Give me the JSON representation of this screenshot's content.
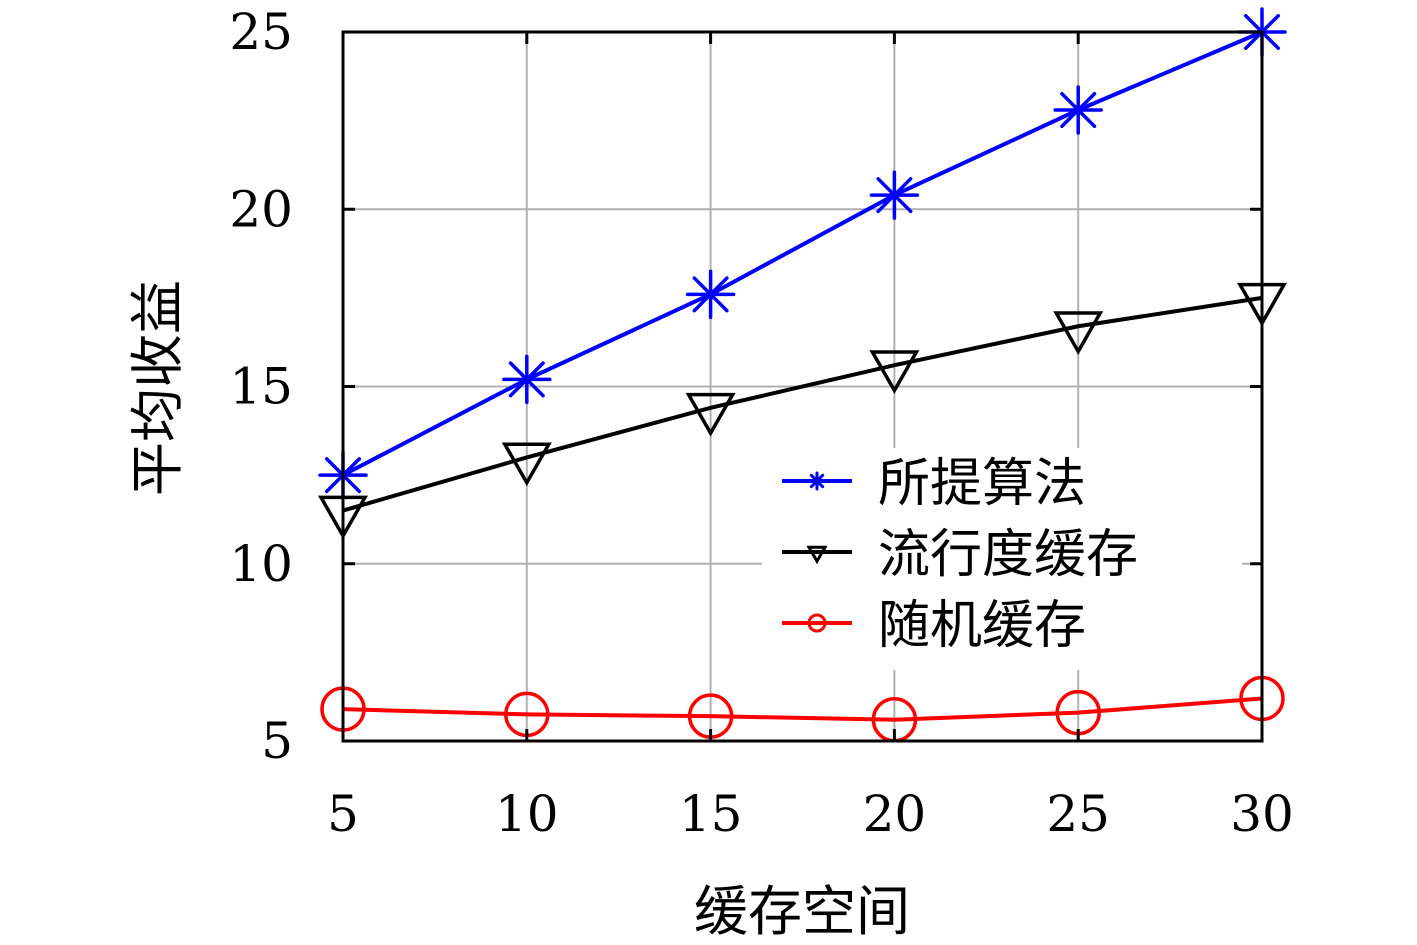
{
  "chart_data": {
    "type": "line",
    "xlabel": "缓存空间",
    "ylabel": "平均收益",
    "x": [
      5,
      10,
      15,
      20,
      25,
      30
    ],
    "xlim": [
      5,
      30
    ],
    "ylim": [
      5,
      25
    ],
    "xticks": [
      5,
      10,
      15,
      20,
      25,
      30
    ],
    "yticks": [
      5,
      10,
      15,
      20,
      25
    ],
    "grid": true,
    "legend_position": "bottom-right",
    "series": [
      {
        "name": "所提算法",
        "values": [
          12.5,
          15.2,
          17.6,
          20.4,
          22.8,
          25.0
        ],
        "color": "#0000ff",
        "marker": "asterisk"
      },
      {
        "name": "流行度缓存",
        "values": [
          11.5,
          13.0,
          14.4,
          15.6,
          16.7,
          17.5
        ],
        "color": "#000000",
        "marker": "triangle-down"
      },
      {
        "name": "随机缓存",
        "values": [
          5.9,
          5.75,
          5.7,
          5.6,
          5.8,
          6.2
        ],
        "color": "#ff0000",
        "marker": "circle"
      }
    ]
  }
}
